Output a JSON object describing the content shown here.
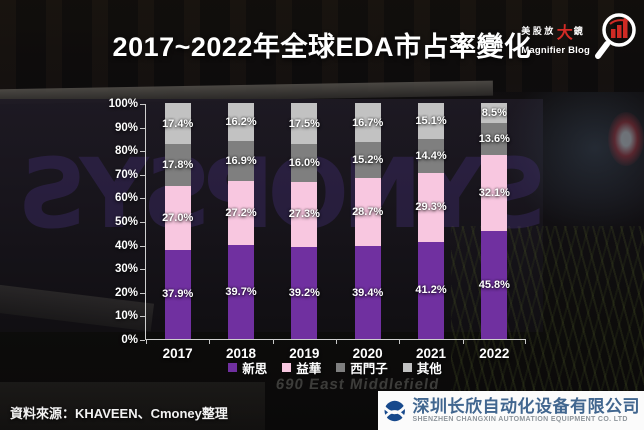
{
  "title": "2017~2022年全球EDA市占率變化",
  "brand": {
    "zh_pre": "美股放",
    "zh_big": "大",
    "zh_post": "鏡",
    "en": "Magnifier Blog"
  },
  "background": {
    "sign_text": "SYNOPSYS",
    "address_text": "690 East Middlefield"
  },
  "chart_data": {
    "type": "bar",
    "stacked": true,
    "title": "2017~2022年全球EDA市占率變化",
    "categories": [
      "2017",
      "2018",
      "2019",
      "2020",
      "2021",
      "2022"
    ],
    "series": [
      {
        "name": "新思",
        "color": "#7030a0",
        "values": [
          37.9,
          39.7,
          39.2,
          39.4,
          41.2,
          45.8
        ]
      },
      {
        "name": "益華",
        "color": "#f8c7e0",
        "values": [
          27.0,
          27.2,
          27.3,
          28.7,
          29.3,
          32.1
        ]
      },
      {
        "name": "西門子",
        "color": "#7f7f7f",
        "values": [
          17.8,
          16.9,
          16.0,
          15.2,
          14.4,
          13.6
        ]
      },
      {
        "name": "其他",
        "color": "#c2c2c2",
        "values": [
          17.4,
          16.2,
          17.5,
          16.7,
          15.1,
          8.5
        ]
      }
    ],
    "y_ticks": [
      "100%",
      "90%",
      "80%",
      "70%",
      "60%",
      "50%",
      "40%",
      "30%",
      "20%",
      "10%",
      "0%"
    ],
    "ylim": [
      0,
      100
    ],
    "value_suffix": "%",
    "grid": false,
    "legend_position": "bottom",
    "xlabel": "",
    "ylabel": ""
  },
  "source": "資料來源：KHAVEEN、Cmoney整理",
  "watermark": {
    "company_zh": "深圳长欣自动化设备有限公司",
    "company_en": "SHENZHEN CHANGXIN AUTOMATION EQUIPMENT CO. LTD",
    "logo_color": "#17498c"
  }
}
